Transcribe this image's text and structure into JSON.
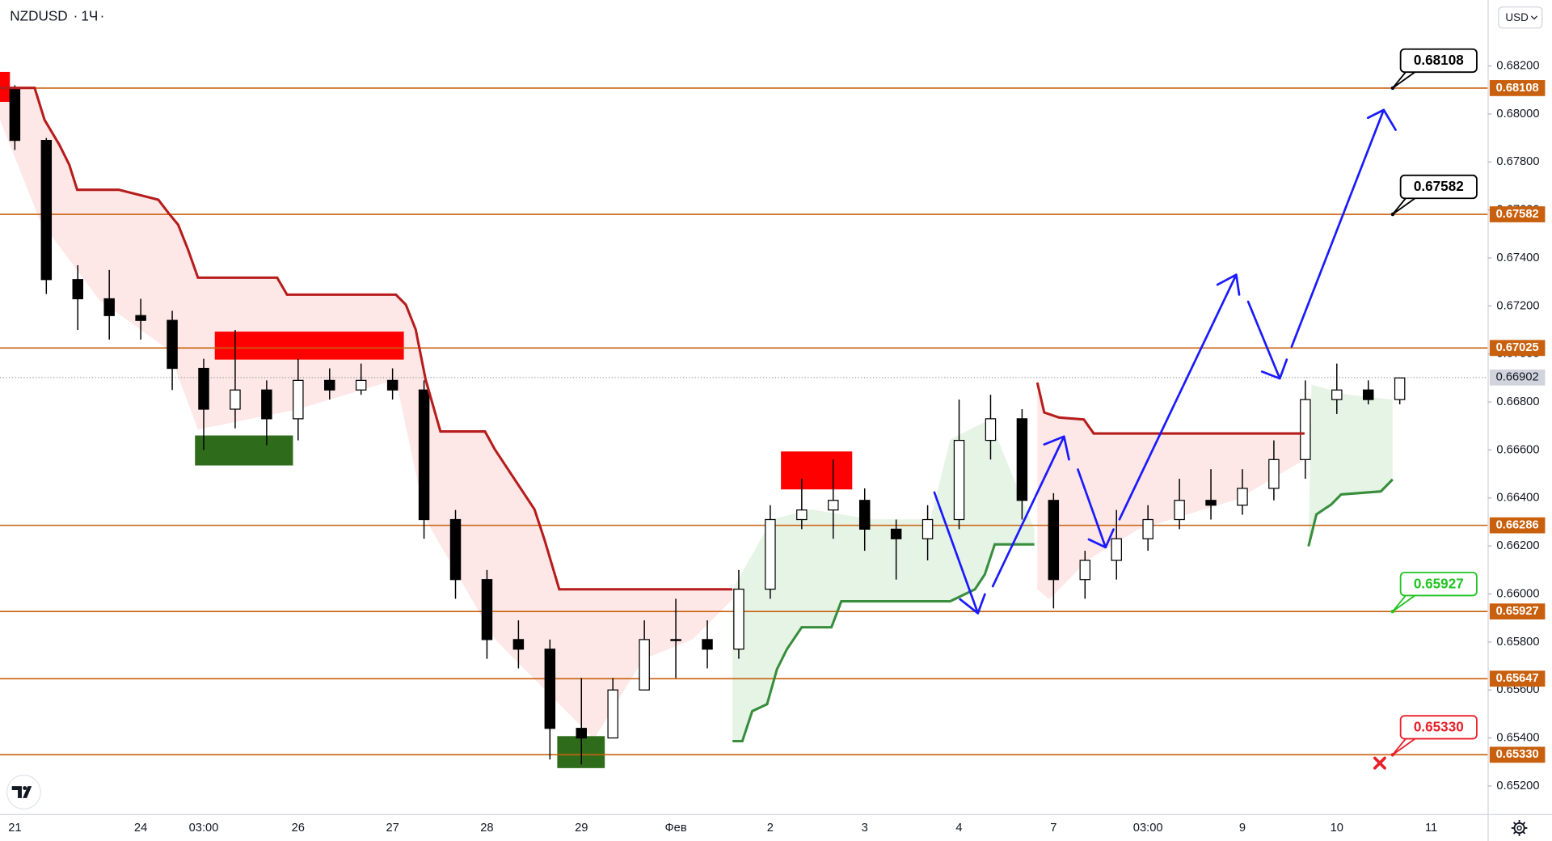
{
  "chart_data": {
    "type": "candlestick",
    "symbol": "NZDUSD",
    "interval": "1Ч",
    "currency": "USD",
    "categories": [
      "21",
      null,
      null,
      null,
      "24",
      null,
      "03:00",
      null,
      null,
      "26",
      null,
      null,
      "27",
      null,
      null,
      "28",
      null,
      null,
      "29",
      null,
      null,
      "Фев",
      null,
      null,
      "2",
      null,
      null,
      "3",
      null,
      null,
      "4",
      null,
      null,
      "7",
      null,
      null,
      "03:00",
      null,
      null,
      "9",
      null,
      null,
      "10",
      null,
      null,
      "11",
      null
    ],
    "open": [
      0.6811,
      0.6789,
      0.6731,
      0.6723,
      0.6716,
      0.6714,
      0.6694,
      0.6677,
      0.6685,
      0.6673,
      0.6689,
      0.6685,
      0.6689,
      0.6685,
      0.6631,
      0.6606,
      0.6581,
      0.6577,
      0.6544,
      0.654,
      0.656,
      0.6581,
      0.6581,
      0.6577,
      0.6602,
      0.6631,
      0.6635,
      0.6639,
      0.6627,
      0.6623,
      0.6631,
      0.6664,
      0.6673,
      0.6639,
      0.6606,
      0.6614,
      0.6623,
      0.6631,
      0.6639,
      0.6637,
      0.6644,
      0.6656,
      0.6681,
      0.6685,
      0.6681,
      null,
      null
    ],
    "high": [
      0.6812,
      0.679,
      0.6737,
      0.6735,
      0.6723,
      0.6718,
      0.6698,
      0.671,
      0.6689,
      0.6698,
      0.6694,
      0.6696,
      0.6694,
      0.6689,
      0.6635,
      0.661,
      0.6589,
      0.6581,
      0.6565,
      0.6565,
      0.6589,
      0.6598,
      0.6589,
      0.661,
      0.6637,
      0.6648,
      0.6656,
      0.6644,
      0.6631,
      0.6637,
      0.6681,
      0.6683,
      0.6677,
      0.6642,
      0.6618,
      0.6635,
      0.6637,
      0.6648,
      0.6652,
      0.6652,
      0.6664,
      0.6689,
      0.6696,
      0.6689,
      0.669,
      null,
      null
    ],
    "low": [
      0.6785,
      0.6725,
      0.671,
      0.6706,
      0.6706,
      0.6685,
      0.666,
      0.6669,
      0.6662,
      0.6664,
      0.6681,
      0.6683,
      0.6681,
      0.6623,
      0.6598,
      0.6573,
      0.6569,
      0.6531,
      0.6529,
      0.654,
      0.656,
      0.6565,
      0.6569,
      0.6573,
      0.6598,
      0.6627,
      0.6623,
      0.6618,
      0.6606,
      0.6614,
      0.6627,
      0.6656,
      0.6631,
      0.6594,
      0.6598,
      0.6606,
      0.6618,
      0.6627,
      0.6631,
      0.6633,
      0.6639,
      0.6648,
      0.6675,
      0.6679,
      0.6679,
      null,
      null
    ],
    "close": [
      0.6789,
      0.6731,
      0.6723,
      0.6716,
      0.6714,
      0.6694,
      0.6677,
      0.6685,
      0.6673,
      0.6689,
      0.6685,
      0.6689,
      0.6685,
      0.6631,
      0.6606,
      0.6581,
      0.6577,
      0.6544,
      0.654,
      0.656,
      0.6581,
      0.6581,
      0.6577,
      0.6602,
      0.6631,
      0.6635,
      0.6639,
      0.6627,
      0.6623,
      0.6631,
      0.6664,
      0.6673,
      0.6639,
      0.6606,
      0.6614,
      0.6623,
      0.6631,
      0.6639,
      0.6637,
      0.6644,
      0.6656,
      0.6681,
      0.6685,
      0.6681,
      0.669,
      null,
      null
    ],
    "up_color": "#ffffff",
    "down_color": "#000000",
    "ylim": [
      0.65083,
      0.68475
    ],
    "yticks": [
      {
        "value": 0.652,
        "label": "0.65200"
      },
      {
        "value": 0.654,
        "label": "0.65400"
      },
      {
        "value": 0.656,
        "label": "0.65600"
      },
      {
        "value": 0.658,
        "label": "0.65800"
      },
      {
        "value": 0.66,
        "label": "0.66000"
      },
      {
        "value": 0.662,
        "label": "0.66200"
      },
      {
        "value": 0.664,
        "label": "0.66400"
      },
      {
        "value": 0.666,
        "label": "0.66600"
      },
      {
        "value": 0.668,
        "label": "0.66800"
      },
      {
        "value": 0.67,
        "label": "0.67000"
      },
      {
        "value": 0.672,
        "label": "0.67200"
      },
      {
        "value": 0.674,
        "label": "0.67400"
      },
      {
        "value": 0.676,
        "label": "0.67600"
      },
      {
        "value": 0.678,
        "label": "0.67800"
      },
      {
        "value": 0.68,
        "label": "0.68000"
      },
      {
        "value": 0.682,
        "label": "0.68200"
      }
    ],
    "levels": [
      0.68108,
      0.67582,
      0.67025,
      0.66286,
      0.65927,
      0.65647,
      {
        "value": 0.6533,
        "label": "0.65330"
      }
    ],
    "level_color": "#c8600d",
    "last_price": 0.66902,
    "last_price_color": "#d1d4dc",
    "callouts": [
      {
        "value": 0.68108,
        "color": "#000000"
      },
      {
        "value": 0.67582,
        "color": "#000000"
      },
      {
        "value": 0.65927,
        "color": "#22c322"
      },
      {
        "value": {
          "value": 0.6533,
          "label": "0.65330"
        },
        "color": "#e8202a"
      }
    ]
  }
}
